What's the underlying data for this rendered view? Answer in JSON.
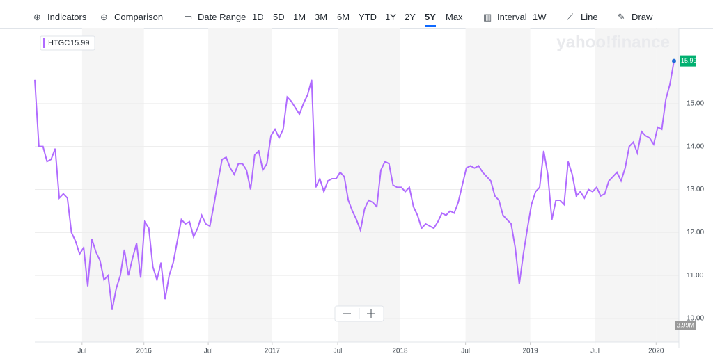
{
  "toolbar": {
    "items": [
      "Indicators",
      "Comparison",
      "Date Range",
      "1D",
      "5D",
      "1M",
      "3M",
      "6M",
      "YTD",
      "1Y",
      "2Y",
      "5Y",
      "Max",
      "Interval",
      "1W",
      "Line",
      "Draw"
    ],
    "active": "5Y"
  },
  "chart_data": {
    "type": "line",
    "watermark": "yahoo!finance",
    "symbol": "HTGC",
    "last_price": "15.99",
    "volume_label": "3.99M",
    "series": [
      {
        "name": "HTGC",
        "color": "#b06bff",
        "values": [
          15.55,
          14.0,
          14.0,
          13.65,
          13.7,
          13.95,
          12.8,
          12.9,
          12.8,
          12.0,
          11.8,
          11.5,
          11.65,
          10.75,
          11.85,
          11.55,
          11.35,
          10.9,
          11.0,
          10.2,
          10.7,
          11.0,
          11.6,
          11.0,
          11.4,
          11.75,
          10.95,
          12.25,
          12.1,
          11.2,
          10.9,
          11.3,
          10.45,
          11.0,
          11.3,
          11.8,
          12.3,
          12.2,
          12.25,
          11.9,
          12.1,
          12.4,
          12.2,
          12.15,
          12.65,
          13.2,
          13.7,
          13.75,
          13.5,
          13.35,
          13.6,
          13.6,
          13.45,
          13.0,
          13.8,
          13.9,
          13.45,
          13.6,
          14.25,
          14.4,
          14.2,
          14.4,
          15.15,
          15.05,
          14.9,
          14.75,
          15.0,
          15.2,
          15.55,
          13.05,
          13.25,
          12.95,
          13.2,
          13.25,
          13.25,
          13.4,
          13.3,
          12.75,
          12.5,
          12.3,
          12.05,
          12.55,
          12.75,
          12.7,
          12.6,
          13.45,
          13.65,
          13.6,
          13.1,
          13.05,
          13.05,
          12.95,
          13.05,
          12.6,
          12.4,
          12.1,
          12.2,
          12.15,
          12.1,
          12.25,
          12.45,
          12.4,
          12.5,
          12.45,
          12.7,
          13.1,
          13.5,
          13.55,
          13.5,
          13.55,
          13.4,
          13.3,
          13.2,
          12.85,
          12.75,
          12.4,
          12.3,
          12.2,
          11.65,
          10.8,
          11.5,
          12.1,
          12.65,
          12.95,
          13.05,
          13.9,
          13.35,
          12.3,
          12.75,
          12.75,
          12.65,
          13.65,
          13.35,
          12.85,
          12.95,
          12.8,
          13.0,
          12.95,
          13.05,
          12.85,
          12.9,
          13.2,
          13.3,
          13.4,
          13.2,
          13.5,
          14.0,
          14.1,
          13.85,
          14.35,
          14.25,
          14.2,
          14.05,
          14.45,
          14.4,
          15.1,
          15.45,
          15.99
        ]
      }
    ],
    "xlim": [
      0,
      157
    ],
    "xticks": [
      {
        "value": 11.6,
        "label": "Jul"
      },
      {
        "value": 26.8,
        "label": "2016"
      },
      {
        "value": 42.6,
        "label": "Jul"
      },
      {
        "value": 58.3,
        "label": "2017"
      },
      {
        "value": 74.4,
        "label": "Jul"
      },
      {
        "value": 89.7,
        "label": "2018"
      },
      {
        "value": 105.8,
        "label": "Jul"
      },
      {
        "value": 121.7,
        "label": "2019"
      },
      {
        "value": 137.6,
        "label": "Jul"
      },
      {
        "value": 152.6,
        "label": "2020"
      }
    ],
    "ylim": [
      9.45,
      16.76
    ],
    "yticks": [
      {
        "value": 10,
        "label": "10.00"
      },
      {
        "value": 11,
        "label": "11.00"
      },
      {
        "value": 12,
        "label": "12.00"
      },
      {
        "value": 13,
        "label": "13.00"
      },
      {
        "value": 14,
        "label": "14.00"
      },
      {
        "value": 15,
        "label": "15.00"
      }
    ],
    "grid": true
  }
}
